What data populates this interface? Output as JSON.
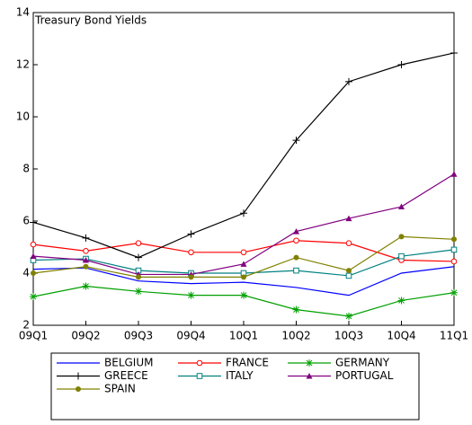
{
  "chart_data": {
    "type": "line",
    "title": "Treasury Bond Yields",
    "categories": [
      "09Q1",
      "09Q2",
      "09Q3",
      "09Q4",
      "10Q1",
      "10Q2",
      "10Q3",
      "10Q4",
      "11Q1"
    ],
    "ylim": [
      2,
      14
    ],
    "yticks": [
      2,
      4,
      6,
      8,
      10,
      12,
      14
    ],
    "series": [
      {
        "name": "BELGIUM",
        "color": "#0000ff",
        "marker": "none",
        "values": [
          4.15,
          4.2,
          3.7,
          3.6,
          3.65,
          3.45,
          3.15,
          4.0,
          4.25
        ]
      },
      {
        "name": "FRANCE",
        "color": "#ff0000",
        "marker": "circle",
        "values": [
          5.1,
          4.85,
          5.15,
          4.8,
          4.8,
          5.25,
          5.15,
          4.5,
          4.45
        ]
      },
      {
        "name": "GERMANY",
        "color": "#00a000",
        "marker": "star",
        "values": [
          3.1,
          3.5,
          3.3,
          3.15,
          3.15,
          2.6,
          2.35,
          2.95,
          3.25
        ]
      },
      {
        "name": "GREECE",
        "color": "#000000",
        "marker": "plus",
        "values": [
          5.95,
          5.35,
          4.6,
          5.5,
          6.3,
          9.1,
          11.35,
          12.0,
          12.45
        ]
      },
      {
        "name": "ITALY",
        "color": "#008080",
        "marker": "square",
        "values": [
          4.5,
          4.55,
          4.1,
          4.0,
          4.0,
          4.1,
          3.9,
          4.65,
          4.9
        ]
      },
      {
        "name": "PORTUGAL",
        "color": "#800080",
        "marker": "triangle",
        "values": [
          4.65,
          4.5,
          3.95,
          3.95,
          4.35,
          5.6,
          6.1,
          6.55,
          7.8
        ]
      },
      {
        "name": "SPAIN",
        "color": "#808000",
        "marker": "dot",
        "values": [
          4.0,
          4.25,
          3.85,
          3.85,
          3.85,
          4.6,
          4.1,
          5.4,
          5.3
        ]
      }
    ]
  }
}
